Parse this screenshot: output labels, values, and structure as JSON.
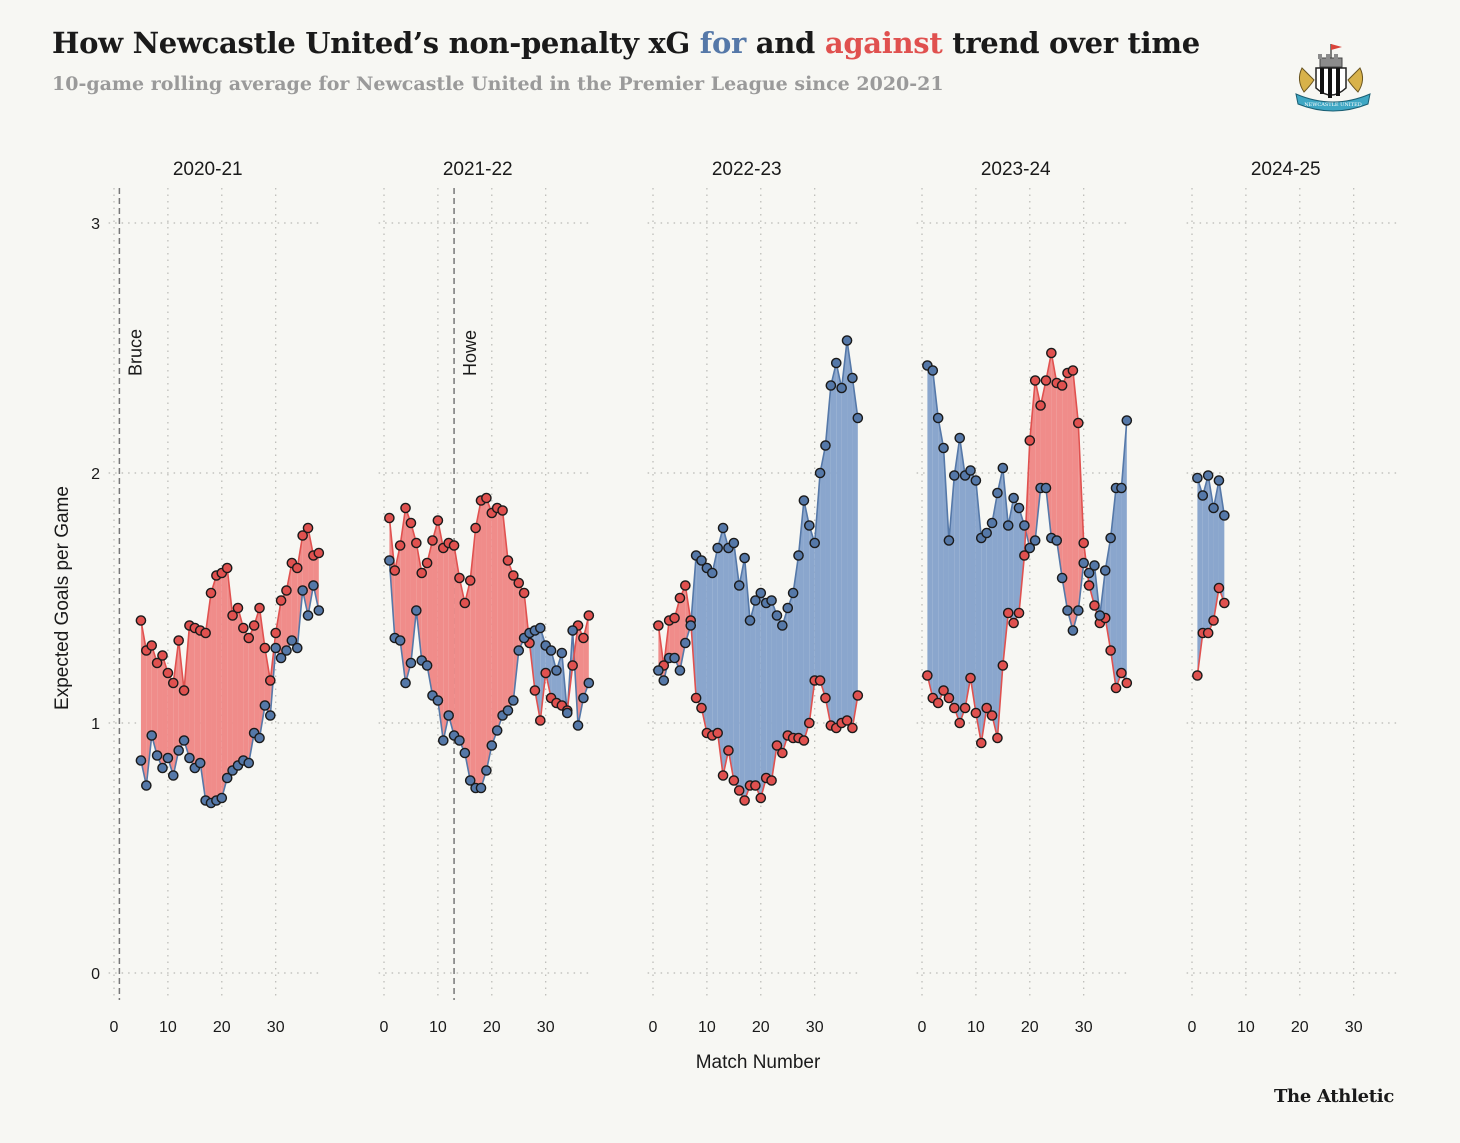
{
  "title": {
    "part1": "How Newcastle United’s non-penalty xG ",
    "for_word": "for",
    "part2": " and ",
    "against_word": "against",
    "part3": " trend over time"
  },
  "subtitle": "10-game rolling average for Newcastle United in the Premier League since 2020-21",
  "brand": "The Athletic",
  "logo_text": "NEWCASTLE UNITED",
  "colors": {
    "for": "#5578a8",
    "against": "#e0514f",
    "for_fill": "#8aa6cd",
    "against_fill": "#f08c8a"
  },
  "chart_data": {
    "type": "line",
    "xlabel": "Match Number",
    "ylabel": "Expected Goals per Game",
    "ylim": [
      -0.1,
      3.15
    ],
    "xlim": [
      -1,
      38
    ],
    "y_ticks": [
      0,
      1,
      2,
      3
    ],
    "x_ticks": [
      0,
      10,
      20,
      30
    ],
    "grid": true,
    "facets": [
      {
        "season": "2020-21",
        "events": [
          {
            "x": 1,
            "label": "Bruce"
          }
        ],
        "start": 5,
        "for": [
          0.85,
          0.75,
          0.95,
          0.87,
          0.82,
          0.86,
          0.79,
          0.89,
          0.93,
          0.86,
          0.82,
          0.84,
          0.69,
          0.68,
          0.69,
          0.7,
          0.78,
          0.81,
          0.83,
          0.85,
          0.84,
          0.96,
          0.94,
          1.07,
          1.03,
          1.3,
          1.26,
          1.29,
          1.33,
          1.3,
          1.53,
          1.43,
          1.55,
          1.45
        ],
        "against": [
          1.41,
          1.29,
          1.31,
          1.24,
          1.27,
          1.2,
          1.16,
          1.33,
          1.13,
          1.39,
          1.38,
          1.37,
          1.36,
          1.52,
          1.59,
          1.6,
          1.62,
          1.43,
          1.46,
          1.38,
          1.34,
          1.39,
          1.46,
          1.3,
          1.17,
          1.36,
          1.49,
          1.53,
          1.64,
          1.62,
          1.75,
          1.78,
          1.67,
          1.68
        ]
      },
      {
        "season": "2021-22",
        "events": [
          {
            "x": 13,
            "label": "Howe"
          }
        ],
        "start": 1,
        "for": [
          1.65,
          1.34,
          1.33,
          1.16,
          1.24,
          1.45,
          1.25,
          1.23,
          1.11,
          1.09,
          0.93,
          1.03,
          0.95,
          0.93,
          0.88,
          0.77,
          0.74,
          0.74,
          0.81,
          0.91,
          0.97,
          1.03,
          1.05,
          1.09,
          1.29,
          1.34,
          1.36,
          1.37,
          1.38,
          1.31,
          1.29,
          1.21,
          1.28,
          1.04,
          1.37,
          0.99,
          1.1,
          1.16
        ],
        "against": [
          1.82,
          1.61,
          1.71,
          1.86,
          1.8,
          1.72,
          1.6,
          1.64,
          1.73,
          1.81,
          1.7,
          1.72,
          1.71,
          1.58,
          1.48,
          1.57,
          1.78,
          1.89,
          1.9,
          1.84,
          1.86,
          1.85,
          1.65,
          1.59,
          1.56,
          1.52,
          1.32,
          1.13,
          1.01,
          1.2,
          1.1,
          1.08,
          1.07,
          1.05,
          1.23,
          1.39,
          1.34,
          1.43
        ]
      },
      {
        "season": "2022-23",
        "events": [],
        "start": 1,
        "for": [
          1.21,
          1.17,
          1.26,
          1.26,
          1.21,
          1.32,
          1.39,
          1.67,
          1.65,
          1.62,
          1.6,
          1.7,
          1.78,
          1.7,
          1.72,
          1.55,
          1.66,
          1.41,
          1.49,
          1.52,
          1.48,
          1.49,
          1.43,
          1.39,
          1.46,
          1.52,
          1.67,
          1.89,
          1.79,
          1.72,
          2.0,
          2.11,
          2.35,
          2.44,
          2.34,
          2.53,
          2.38,
          2.22
        ],
        "against": [
          1.39,
          1.23,
          1.41,
          1.42,
          1.5,
          1.55,
          1.41,
          1.1,
          1.06,
          0.96,
          0.95,
          0.96,
          0.79,
          0.89,
          0.77,
          0.73,
          0.69,
          0.75,
          0.75,
          0.7,
          0.78,
          0.77,
          0.91,
          0.88,
          0.95,
          0.94,
          0.94,
          0.93,
          1.0,
          1.17,
          1.17,
          1.1,
          0.99,
          0.98,
          1.0,
          1.01,
          0.98,
          1.11
        ]
      },
      {
        "season": "2023-24",
        "events": [],
        "start": 1,
        "for": [
          2.43,
          2.41,
          2.22,
          2.1,
          1.73,
          1.99,
          2.14,
          1.99,
          2.01,
          1.97,
          1.74,
          1.76,
          1.8,
          1.92,
          2.02,
          1.79,
          1.9,
          1.86,
          1.79,
          1.7,
          1.73,
          1.94,
          1.94,
          1.74,
          1.73,
          1.58,
          1.45,
          1.37,
          1.45,
          1.64,
          1.6,
          1.63,
          1.43,
          1.61,
          1.74,
          1.94,
          1.94,
          2.21
        ],
        "against": [
          1.19,
          1.1,
          1.08,
          1.13,
          1.1,
          1.06,
          1.0,
          1.06,
          1.18,
          1.04,
          0.92,
          1.06,
          1.03,
          0.94,
          1.23,
          1.44,
          1.4,
          1.44,
          1.67,
          2.13,
          2.37,
          2.27,
          2.37,
          2.48,
          2.36,
          2.35,
          2.4,
          2.41,
          2.2,
          1.72,
          1.55,
          1.47,
          1.4,
          1.42,
          1.29,
          1.14,
          1.2,
          1.16
        ]
      },
      {
        "season": "2024-25",
        "events": [],
        "start": 1,
        "for": [
          1.98,
          1.91,
          1.99,
          1.86,
          1.97,
          1.83
        ],
        "against": [
          1.19,
          1.36,
          1.36,
          1.41,
          1.54,
          1.48
        ]
      }
    ]
  }
}
